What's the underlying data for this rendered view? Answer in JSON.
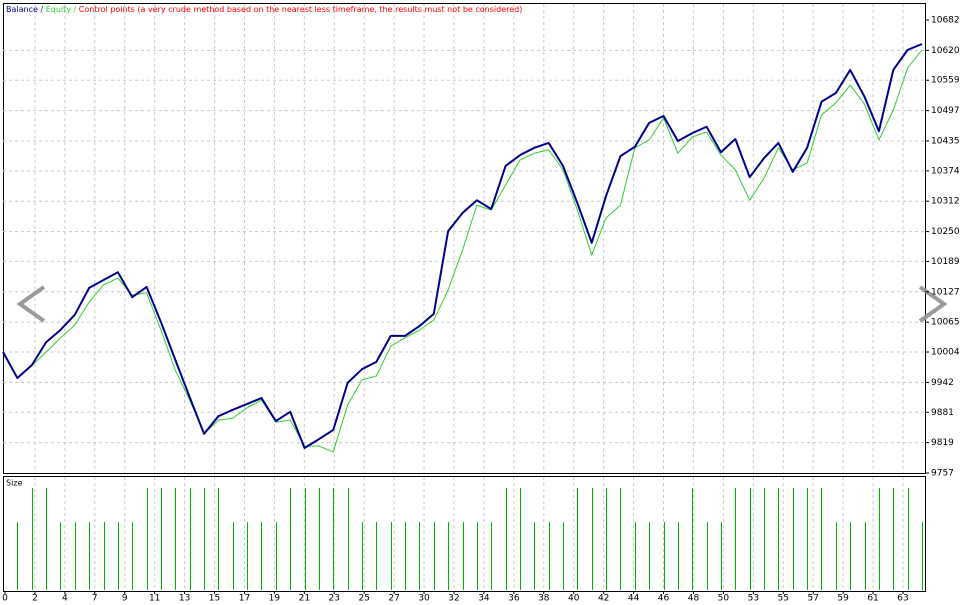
{
  "chart_data": {
    "type": "line",
    "legend_separator": "/",
    "control_points_note": "Control points (a very crude method based on the nearest less timeframe, the results must not be considered)",
    "control_points_color": "#ff0000",
    "size_label": "Size",
    "size_color": "#00b400",
    "ylim": [
      9757,
      10682
    ],
    "yticks": [
      10682,
      10620,
      10559,
      10497,
      10435,
      10374,
      10312,
      10250,
      10189,
      10127,
      10065,
      10004,
      9942,
      9881,
      9819,
      9757
    ],
    "grid": true,
    "x_labels": [
      "0",
      "2",
      "4",
      "7",
      "9",
      "11",
      "13",
      "15",
      "17",
      "19",
      "21",
      "23",
      "25",
      "27",
      "30",
      "32",
      "34",
      "36",
      "38",
      "40",
      "42",
      "44",
      "46",
      "48",
      "50",
      "53",
      "55",
      "57",
      "59",
      "61",
      "63"
    ],
    "series": [
      {
        "name": "Balance",
        "color": "#00008b",
        "values": [
          10004,
          9951,
          9977,
          10024,
          10049,
          10080,
          10135,
          10151,
          10167,
          10116,
          10137,
          10065,
          9988,
          9912,
          9837,
          9873,
          9886,
          9898,
          9910,
          9863,
          9882,
          9808,
          9826,
          9845,
          9941,
          9969,
          9984,
          10037,
          10037,
          10057,
          10082,
          10251,
          10288,
          10314,
          10296,
          10384,
          10406,
          10421,
          10431,
          10384,
          10308,
          10227,
          10323,
          10404,
          10423,
          10472,
          10486,
          10435,
          10451,
          10464,
          10412,
          10439,
          10361,
          10400,
          10431,
          10372,
          10421,
          10515,
          10533,
          10580,
          10525,
          10455,
          10580,
          10621,
          10633
        ]
      },
      {
        "name": "Equity",
        "color": "#32cd32",
        "values": [
          10004,
          9951,
          9976,
          10004,
          10033,
          10059,
          10106,
          10141,
          10155,
          10120,
          10125,
          10049,
          9967,
          9906,
          9837,
          9865,
          9869,
          9890,
          9906,
          9861,
          9865,
          9812,
          9812,
          9800,
          9896,
          9947,
          9955,
          10016,
          10033,
          10049,
          10069,
          10131,
          10212,
          10304,
          10294,
          10345,
          10396,
          10410,
          10417,
          10376,
          10294,
          10202,
          10278,
          10304,
          10421,
          10437,
          10482,
          10410,
          10443,
          10453,
          10406,
          10376,
          10314,
          10359,
          10421,
          10376,
          10390,
          10488,
          10513,
          10549,
          10510,
          10437,
          10498,
          10584,
          10621
        ]
      }
    ],
    "size_values": [
      null,
      2,
      3,
      3,
      2,
      2,
      2,
      2,
      2,
      2,
      3,
      3,
      3,
      3,
      3,
      3,
      2,
      2,
      2,
      2,
      3,
      3,
      3,
      3,
      3,
      2,
      2,
      2,
      2,
      2,
      2,
      2,
      2,
      2,
      2,
      3,
      3,
      2,
      2,
      2,
      3,
      3,
      3,
      3,
      2,
      2,
      2,
      2,
      3,
      2,
      2,
      3,
      3,
      3,
      3,
      3,
      3,
      3,
      2,
      2,
      2,
      3,
      3,
      3,
      2
    ]
  }
}
